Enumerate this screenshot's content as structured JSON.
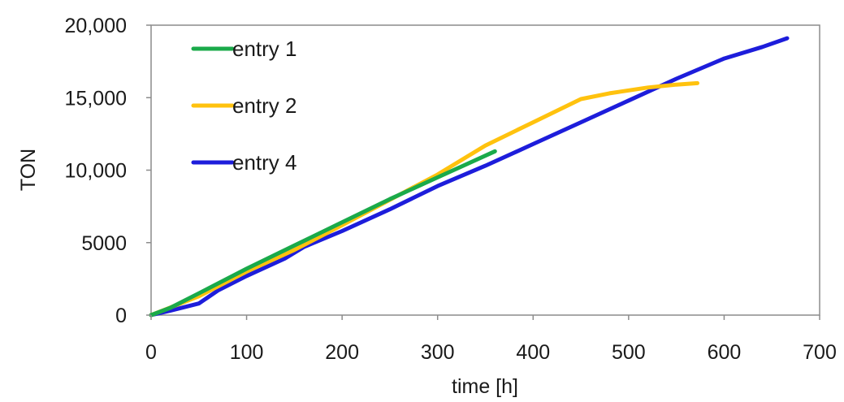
{
  "chart_data": {
    "type": "line",
    "xlabel": "time [h]",
    "ylabel": "TON",
    "xlim": [
      0,
      700
    ],
    "ylim": [
      0,
      20000
    ],
    "x_ticks": [
      0,
      100,
      200,
      300,
      400,
      500,
      600,
      700
    ],
    "x_tick_labels": [
      "0",
      "100",
      "200",
      "300",
      "400",
      "500",
      "600",
      "700"
    ],
    "y_ticks": [
      0,
      5000,
      10000,
      15000,
      20000
    ],
    "y_tick_labels": [
      "0",
      "5000",
      "10,000",
      "15,000",
      "20,000"
    ],
    "grid": false,
    "legend_placement": "top-left",
    "series": [
      {
        "name": "entry 1",
        "color": "#1aaa4a",
        "points": [
          [
            0,
            0
          ],
          [
            20,
            500
          ],
          [
            50,
            1500
          ],
          [
            100,
            3200
          ],
          [
            150,
            4800
          ],
          [
            200,
            6400
          ],
          [
            250,
            8000
          ],
          [
            300,
            9500
          ],
          [
            330,
            10400
          ],
          [
            360,
            11300
          ]
        ]
      },
      {
        "name": "entry 2",
        "color": "#ffc20e",
        "points": [
          [
            0,
            0
          ],
          [
            50,
            1300
          ],
          [
            100,
            3000
          ],
          [
            150,
            4500
          ],
          [
            200,
            6200
          ],
          [
            260,
            8300
          ],
          [
            300,
            9700
          ],
          [
            350,
            11700
          ],
          [
            400,
            13300
          ],
          [
            450,
            14900
          ],
          [
            480,
            15300
          ],
          [
            520,
            15700
          ],
          [
            550,
            15900
          ],
          [
            572,
            16000
          ]
        ]
      },
      {
        "name": "entry 4",
        "color": "#1d1ddb",
        "points": [
          [
            0,
            0
          ],
          [
            20,
            300
          ],
          [
            50,
            800
          ],
          [
            70,
            1700
          ],
          [
            100,
            2700
          ],
          [
            140,
            3900
          ],
          [
            160,
            4700
          ],
          [
            200,
            5800
          ],
          [
            250,
            7300
          ],
          [
            300,
            8900
          ],
          [
            350,
            10300
          ],
          [
            400,
            11800
          ],
          [
            450,
            13300
          ],
          [
            500,
            14800
          ],
          [
            550,
            16300
          ],
          [
            600,
            17700
          ],
          [
            640,
            18500
          ],
          [
            666,
            19100
          ]
        ]
      }
    ]
  }
}
